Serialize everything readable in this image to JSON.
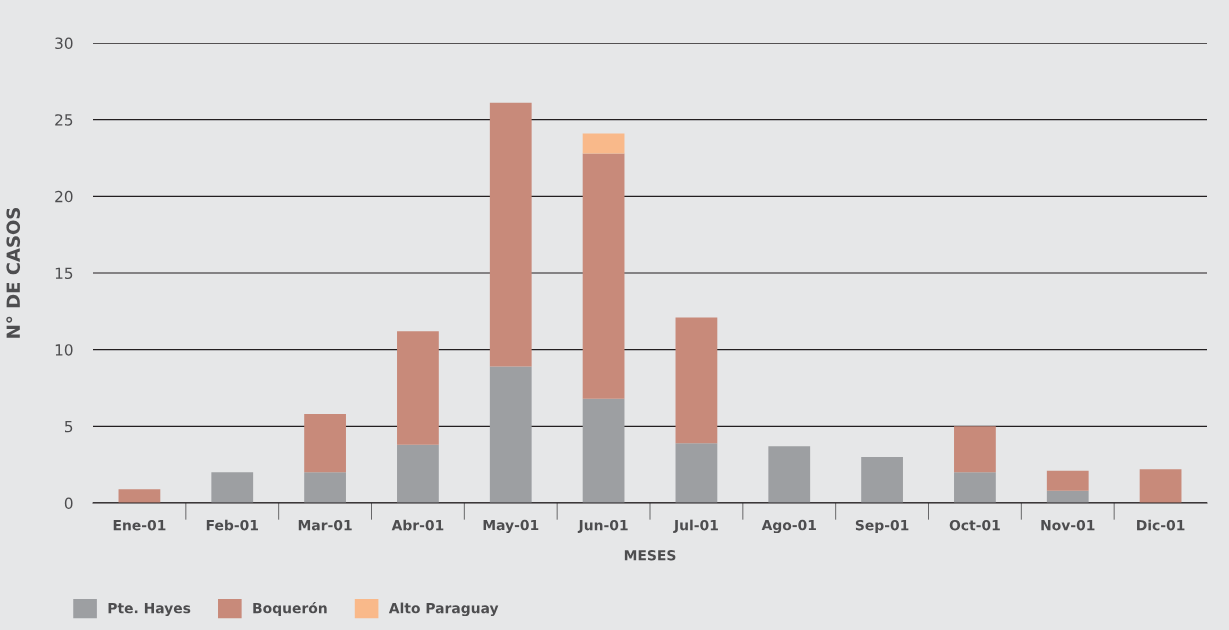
{
  "chart_data": {
    "type": "bar",
    "stacked": true,
    "xlabel": "MESES",
    "ylabel": "N° DE CASOS",
    "categories": [
      "Ene-01",
      "Feb-01",
      "Mar-01",
      "Abr-01",
      "May-01",
      "Jun-01",
      "Jul-01",
      "Ago-01",
      "Sep-01",
      "Oct-01",
      "Nov-01",
      "Dic-01"
    ],
    "series": [
      {
        "name": "Pte. Hayes",
        "color": "#9d9fa2",
        "values": [
          0,
          2,
          2,
          3.8,
          8.9,
          6.8,
          3.9,
          3.7,
          3.0,
          2,
          0.8,
          0
        ]
      },
      {
        "name": "Boquerón",
        "color": "#c88a7a",
        "values": [
          0.9,
          0,
          3.8,
          7.4,
          17.2,
          16.0,
          8.2,
          0,
          0,
          3.0,
          1.3,
          2.2
        ]
      },
      {
        "name": "Alto Paraguay",
        "color": "#f9b98a",
        "values": [
          0,
          0,
          0,
          0,
          0,
          1.3,
          0,
          0,
          0,
          0,
          0,
          0
        ]
      }
    ],
    "ylim": [
      0,
      30
    ],
    "yticks": [
      0,
      5,
      10,
      15,
      20,
      25,
      30
    ],
    "grid": "y",
    "legend": "bottom left"
  }
}
